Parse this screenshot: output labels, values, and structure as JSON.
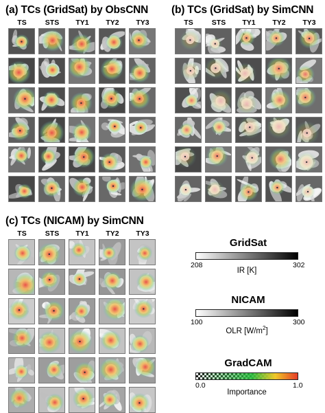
{
  "panels": [
    {
      "title": "(a) TCs (GridSat) by ObsCNN",
      "style": "obs"
    },
    {
      "title": "(b) TCs (GridSat) by SimCNN",
      "style": "sim"
    },
    {
      "title": "(c) TCs (NICAM) by SimCNN",
      "style": "nicam"
    }
  ],
  "columns": [
    "TS",
    "STS",
    "TY1",
    "TY2",
    "TY3"
  ],
  "rows_per_panel": 6,
  "colorbars": {
    "gridsat": {
      "title": "GridSat",
      "min": "208",
      "max": "302",
      "label": "IR [K]"
    },
    "nicam": {
      "title": "NICAM",
      "min": "100",
      "max": "300",
      "label_main": "OLR [W/m",
      "label_sup": "2",
      "label_end": "]"
    },
    "gradcam": {
      "title": "GradCAM",
      "min": "0.0",
      "max": "1.0",
      "label": "Importance"
    }
  },
  "colors": {
    "heat_core": "#e8352c",
    "heat_mid": "#f3b23a",
    "heat_outer": "#9fd46a",
    "heat_edge": "#5cb7c9"
  }
}
